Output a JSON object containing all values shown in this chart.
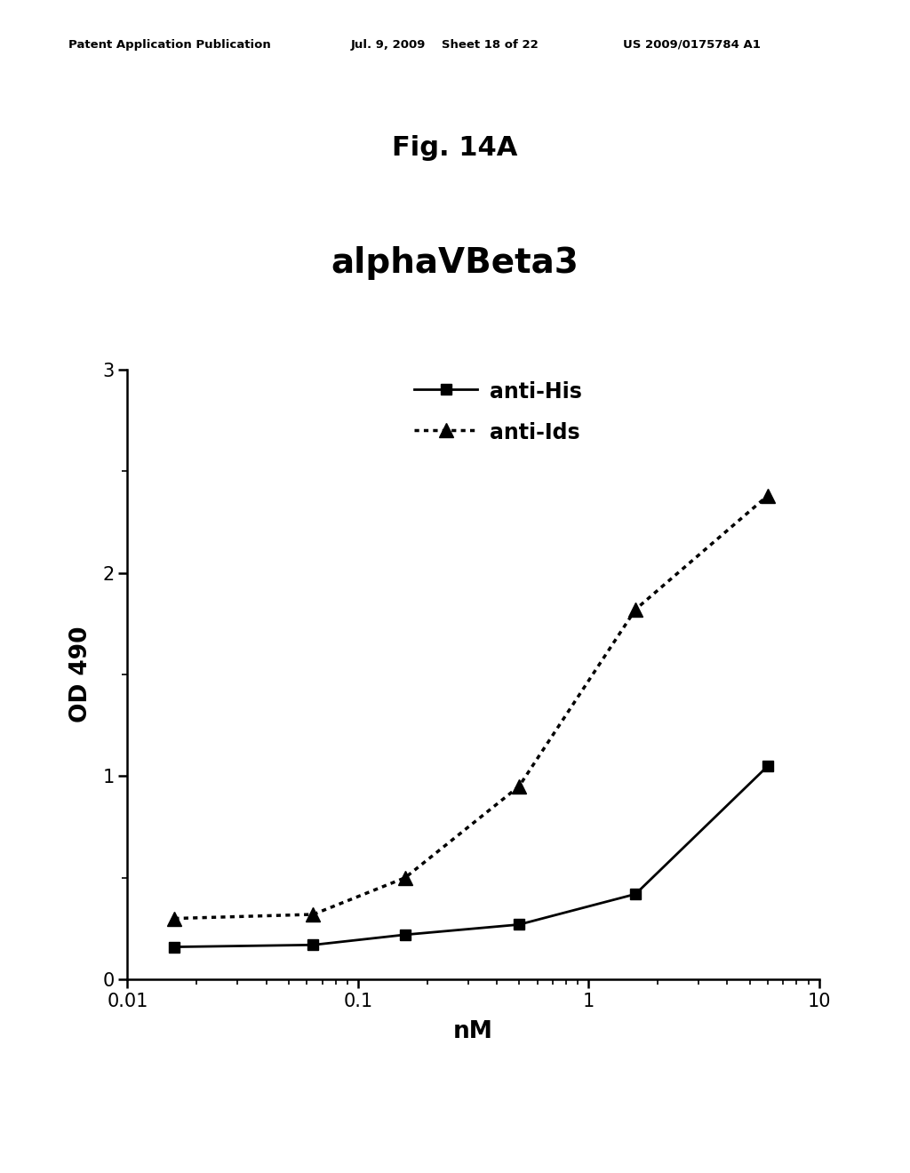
{
  "fig_label": "Fig. 14A",
  "chart_title": "alphaVBeta3",
  "xlabel": "nM",
  "ylabel": "OD 490",
  "header_left": "Patent Application Publication",
  "header_mid": "Jul. 9, 2009    Sheet 18 of 22",
  "header_right": "US 2009/0175784 A1",
  "anti_his_x": [
    0.016,
    0.064,
    0.16,
    0.5,
    1.6,
    6.0
  ],
  "anti_his_y": [
    0.16,
    0.17,
    0.22,
    0.27,
    0.42,
    1.05
  ],
  "anti_ids_x": [
    0.016,
    0.064,
    0.16,
    0.5,
    1.6,
    6.0
  ],
  "anti_ids_y": [
    0.3,
    0.32,
    0.5,
    0.95,
    1.82,
    2.38
  ],
  "ylim": [
    0,
    3.0
  ],
  "xlim": [
    0.01,
    10
  ],
  "yticks": [
    0,
    1,
    2,
    3
  ],
  "background_color": "#ffffff",
  "line_color": "#000000"
}
